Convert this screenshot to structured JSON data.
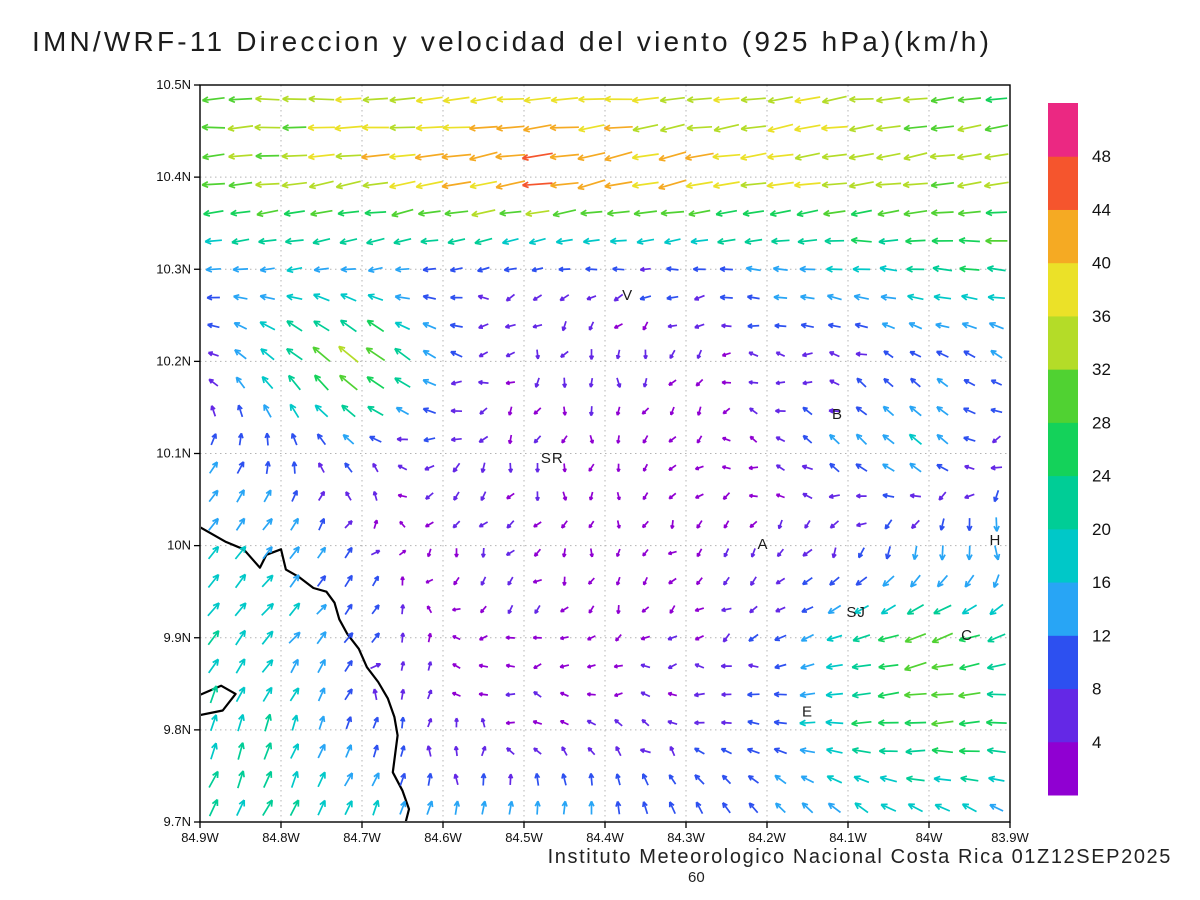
{
  "title": "IMN/WRF-11 Direccion y velocidad del viento (925 hPa)(km/h)",
  "caption": "Instituto Meteorologico Nacional Costa Rica 01Z12SEP2025",
  "forecast_hour": "60",
  "axes": {
    "x_tick_labels": [
      "84.9W",
      "84.8W",
      "84.7W",
      "84.6W",
      "84.5W",
      "84.4W",
      "84.3W",
      "84.2W",
      "84.1W",
      "84W",
      "83.9W"
    ],
    "y_tick_labels": [
      "10.5N",
      "10.4N",
      "10.3N",
      "10.2N",
      "10.1N",
      "10N",
      "9.9N",
      "9.8N",
      "9.7N"
    ],
    "lon_range": [
      84.9,
      83.9
    ],
    "lat_range": [
      10.5,
      9.7
    ],
    "grid": "dotted"
  },
  "colorbar": {
    "labels": [
      4,
      8,
      12,
      16,
      20,
      24,
      28,
      32,
      36,
      40,
      44,
      48
    ],
    "colors_bottom_to_top": [
      "#9000d2",
      "#6428e6",
      "#2d50f0",
      "#28a5f5",
      "#00c8c8",
      "#00cd96",
      "#14d25a",
      "#50d232",
      "#b4dc28",
      "#ebe128",
      "#f5aa23",
      "#f5552d",
      "#eb2882"
    ],
    "units": "km/h"
  },
  "cities": [
    {
      "label": "V",
      "lon": 84.372,
      "lat": 10.272
    },
    {
      "label": "SR",
      "lon": 84.465,
      "lat": 10.095
    },
    {
      "label": "B",
      "lon": 84.113,
      "lat": 10.143
    },
    {
      "label": "A",
      "lon": 84.205,
      "lat": 10.002
    },
    {
      "label": "SJ",
      "lon": 84.09,
      "lat": 9.928
    },
    {
      "label": "C",
      "lon": 83.953,
      "lat": 9.903
    },
    {
      "label": "E",
      "lon": 84.15,
      "lat": 9.82
    },
    {
      "label": "H",
      "lon": 83.918,
      "lat": 10.006
    }
  ],
  "coastline": [
    [
      [
        84.9,
        10.02
      ],
      [
        84.868,
        10.004
      ],
      [
        84.846,
        9.996
      ],
      [
        84.826,
        9.976
      ],
      [
        84.818,
        9.99
      ],
      [
        84.8,
        9.996
      ],
      [
        84.794,
        9.974
      ],
      [
        84.778,
        9.966
      ],
      [
        84.76,
        9.954
      ],
      [
        84.744,
        9.95
      ],
      [
        84.734,
        9.938
      ],
      [
        84.728,
        9.92
      ],
      [
        84.718,
        9.904
      ],
      [
        84.704,
        9.888
      ],
      [
        84.694,
        9.868
      ],
      [
        84.68,
        9.852
      ],
      [
        84.668,
        9.834
      ],
      [
        84.66,
        9.814
      ],
      [
        84.656,
        9.794
      ],
      [
        84.659,
        9.774
      ],
      [
        84.662,
        9.754
      ],
      [
        84.65,
        9.734
      ],
      [
        84.642,
        9.714
      ],
      [
        84.646,
        9.7
      ]
    ],
    [
      [
        84.9,
        9.838
      ],
      [
        84.874,
        9.848
      ],
      [
        84.856,
        9.839
      ],
      [
        84.872,
        9.821
      ],
      [
        84.9,
        9.816
      ]
    ]
  ],
  "chart_data": {
    "type": "vector_field",
    "title": "IMN/WRF-11 Direccion y velocidad del viento (925 hPa)(km/h)",
    "units": "km/h",
    "level": "925 hPa",
    "valid_time": "01Z12SEP2025",
    "lons": [
      84.9,
      84.8,
      84.7,
      84.6,
      84.5,
      84.4,
      84.3,
      84.2,
      84.1,
      84.0,
      83.9
    ],
    "lats": [
      10.5,
      10.4,
      10.3,
      10.2,
      10.1,
      10.0,
      9.9,
      9.8,
      9.7
    ],
    "u": [
      [
        -32,
        -34,
        -36,
        -36,
        -36,
        -36,
        -34,
        -34,
        -32,
        -30,
        -28
      ],
      [
        -30,
        -34,
        -38,
        -42,
        -44,
        -43,
        -40,
        -38,
        -36,
        -34,
        -32
      ],
      [
        -14,
        -16,
        -14,
        -10,
        -8,
        -8,
        -10,
        -14,
        -18,
        -22,
        -24
      ],
      [
        -4,
        -18,
        -28,
        -10,
        -2,
        0,
        -2,
        -4,
        -6,
        -8,
        -10
      ],
      [
        8,
        0,
        -8,
        -6,
        -2,
        0,
        -2,
        -4,
        -10,
        -14,
        -6
      ],
      [
        10,
        10,
        4,
        -2,
        -2,
        0,
        -2,
        -2,
        -4,
        2,
        4
      ],
      [
        12,
        12,
        6,
        -2,
        -4,
        -2,
        -4,
        -6,
        -18,
        -32,
        -20
      ],
      [
        6,
        6,
        4,
        -2,
        -4,
        -4,
        -6,
        -10,
        -22,
        -30,
        -24
      ],
      [
        10,
        10,
        8,
        4,
        2,
        0,
        -4,
        -8,
        -12,
        -14,
        -12
      ]
    ],
    "v": [
      [
        0,
        0,
        -2,
        -2,
        -2,
        -2,
        -4,
        -4,
        -4,
        -2,
        -2
      ],
      [
        -2,
        -4,
        -6,
        -8,
        -8,
        -8,
        -8,
        -8,
        -6,
        -6,
        -4
      ],
      [
        -2,
        -2,
        -2,
        -2,
        -2,
        0,
        0,
        2,
        2,
        2,
        2
      ],
      [
        4,
        16,
        24,
        6,
        -4,
        -6,
        -4,
        0,
        4,
        6,
        6
      ],
      [
        10,
        10,
        4,
        -4,
        -4,
        -2,
        -2,
        2,
        10,
        12,
        -6
      ],
      [
        14,
        12,
        6,
        -4,
        -4,
        -2,
        -2,
        -4,
        -8,
        -14,
        -16
      ],
      [
        16,
        14,
        8,
        2,
        -2,
        -2,
        -2,
        -4,
        -6,
        -10,
        -6
      ],
      [
        20,
        18,
        10,
        4,
        2,
        2,
        2,
        2,
        0,
        -2,
        2
      ],
      [
        18,
        18,
        16,
        14,
        14,
        14,
        12,
        10,
        10,
        8,
        8
      ]
    ],
    "speed_color_bins_kmh": [
      4,
      8,
      12,
      16,
      20,
      24,
      28,
      32,
      36,
      40,
      44,
      48
    ]
  }
}
